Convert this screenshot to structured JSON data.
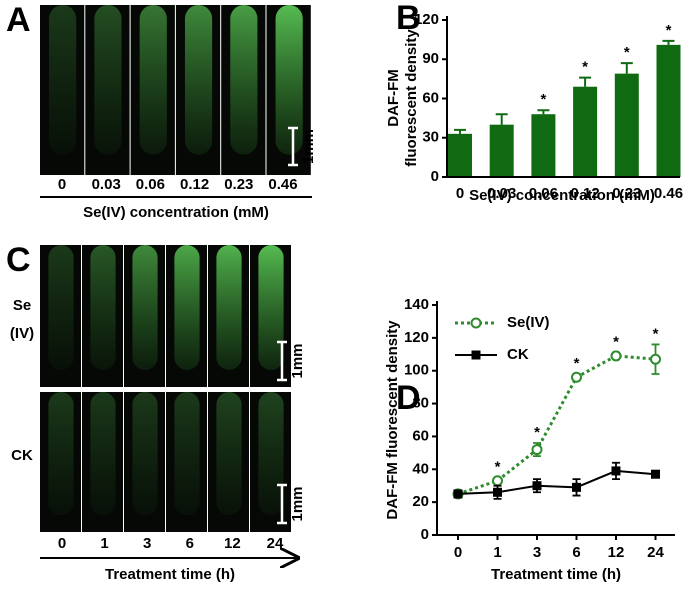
{
  "panel_letters": [
    "A",
    "B",
    "C",
    "D"
  ],
  "panel_a": {
    "concentrations": [
      "0",
      "0.03",
      "0.06",
      "0.12",
      "0.23",
      "0.46"
    ],
    "x_label": "Se(IV) concentration (mM)",
    "scale_bar": "1mm"
  },
  "panel_c": {
    "rows": [
      [
        "Se",
        "(IV)"
      ],
      "CK"
    ],
    "times": [
      "0",
      "1",
      "3",
      "6",
      "12",
      "24"
    ],
    "x_label": "Treatment time (h)",
    "scale_bar": "1mm"
  },
  "chart_data": [
    {
      "type": "bar",
      "y_label": [
        "DAF-FM",
        "fluorescent density"
      ],
      "x_label": "Se(IV) concentration (mM)",
      "categories": [
        "0",
        "0.03",
        "0.06",
        "0.12",
        "0.23",
        "0.46"
      ],
      "values": [
        33,
        40,
        48,
        69,
        79,
        101
      ],
      "errors": [
        3,
        8,
        3,
        7,
        8,
        3
      ],
      "significance": [
        null,
        null,
        "*",
        "*",
        "*",
        "*"
      ],
      "color": "#0f6a12",
      "ylim": [
        0,
        120
      ],
      "yticks": [
        0,
        30,
        60,
        90,
        120
      ]
    },
    {
      "type": "line",
      "y_label": "DAF-FM fluorescent density",
      "x_label": "Treatment time (h)",
      "categories": [
        "0",
        "1",
        "3",
        "6",
        "12",
        "24"
      ],
      "series": [
        {
          "name": "Se(IV)",
          "color": "#2e8b2e",
          "line_style": "dotted",
          "marker": "open-circle",
          "values": [
            25,
            33,
            52,
            96,
            109,
            107
          ],
          "errors": [
            2,
            2,
            4,
            2,
            2,
            9
          ],
          "significance": [
            null,
            "*",
            "*",
            "*",
            "*",
            "*"
          ]
        },
        {
          "name": "CK",
          "color": "#000000",
          "line_style": "solid",
          "marker": "square",
          "values": [
            25,
            26,
            30,
            29,
            39,
            37
          ],
          "errors": [
            2,
            4,
            4,
            5,
            5,
            2
          ]
        }
      ],
      "ylim": [
        0,
        140
      ],
      "yticks": [
        0,
        20,
        40,
        60,
        80,
        100,
        120,
        140
      ]
    }
  ]
}
